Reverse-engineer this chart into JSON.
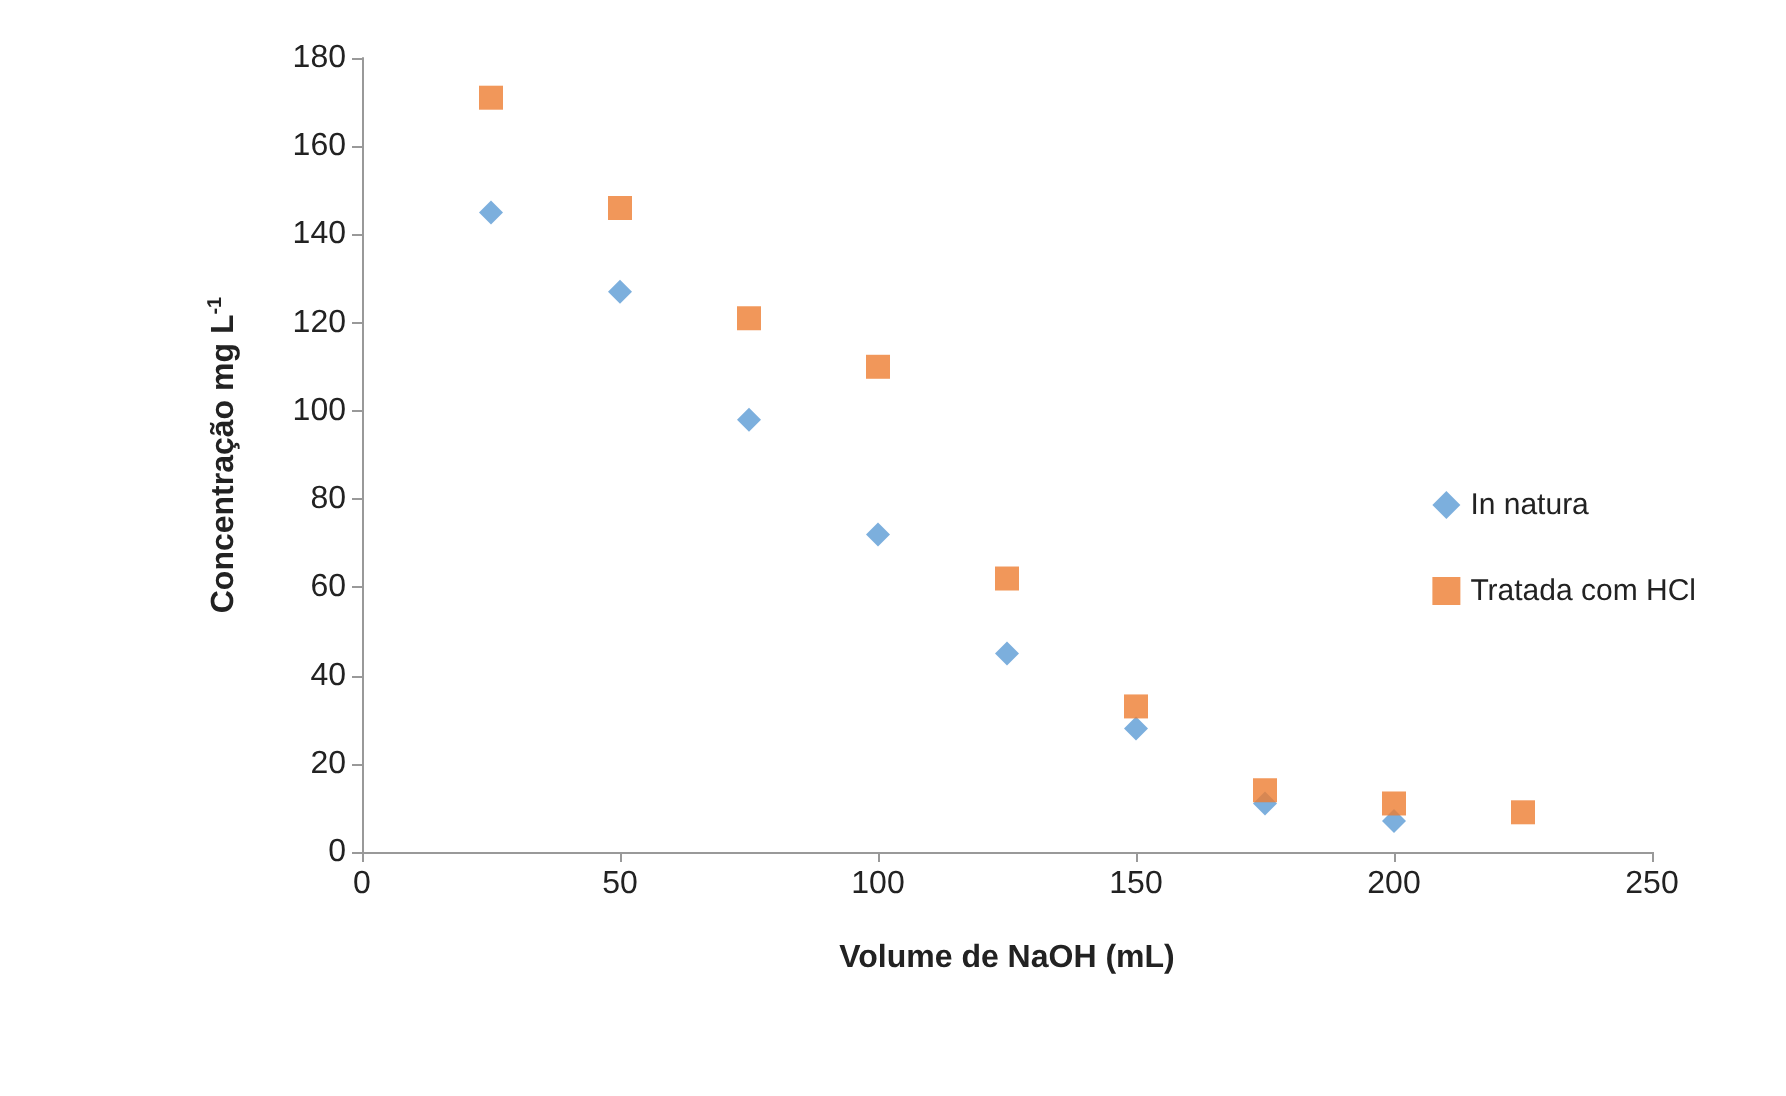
{
  "chart_data": {
    "type": "scatter",
    "xlabel": "Volume de NaOH (mL)",
    "ylabel": "Concentração mg L$^{-1}$",
    "xlim": [
      0,
      250
    ],
    "xticks": [
      0,
      50,
      100,
      150,
      200,
      250
    ],
    "ylim": [
      0,
      180
    ],
    "yticks": [
      0,
      20,
      40,
      60,
      80,
      100,
      120,
      140,
      160,
      180
    ],
    "grid": false,
    "legend": "right",
    "series": [
      {
        "name": "In natura",
        "color": "#5b9bd5",
        "marker": "diamond",
        "x": [
          25,
          50,
          75,
          100,
          125,
          150,
          175,
          200
        ],
        "values": [
          145,
          127,
          98,
          72,
          45,
          28,
          11,
          7
        ]
      },
      {
        "name": "Tratada com HCl",
        "color": "#ed7d31",
        "marker": "square",
        "x": [
          25,
          50,
          75,
          100,
          125,
          150,
          175,
          200,
          225
        ],
        "values": [
          171,
          146,
          121,
          110,
          62,
          33,
          14,
          11,
          9
        ]
      }
    ]
  }
}
